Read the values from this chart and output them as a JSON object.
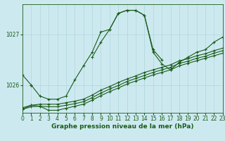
{
  "title": "Graphe pression niveau de la mer (hPa)",
  "bg_color": "#cde9f0",
  "grid_color": "#b0d4dc",
  "line_color": "#1a5c1a",
  "xlim": [
    0,
    23
  ],
  "ylim": [
    1025.45,
    1027.6
  ],
  "yticks": [
    1026,
    1027
  ],
  "xticks": [
    0,
    1,
    2,
    3,
    4,
    5,
    6,
    7,
    8,
    9,
    10,
    11,
    12,
    13,
    14,
    15,
    16,
    17,
    18,
    19,
    20,
    21,
    22,
    23
  ],
  "series": [
    {
      "x": [
        0,
        1,
        2,
        3,
        4,
        5,
        6,
        7,
        8,
        9,
        10,
        11,
        12,
        13,
        14,
        15,
        16,
        17,
        18,
        19,
        20,
        21,
        22,
        23
      ],
      "y": [
        1026.2,
        1026.0,
        null,
        null,
        null,
        null,
        null,
        null,
        1026.55,
        1026.85,
        1027.1,
        1027.42,
        1027.48,
        1027.48,
        1027.38,
        1026.7,
        1026.5,
        null,
        null,
        null,
        null,
        null,
        null,
        null
      ]
    },
    {
      "x": [
        1,
        2,
        3,
        4,
        5,
        6,
        7,
        8,
        9,
        10,
        11,
        12,
        13,
        14,
        15,
        16,
        17,
        18,
        19,
        20,
        21,
        22,
        23
      ],
      "y": [
        1026.0,
        1025.78,
        1025.72,
        1025.72,
        1025.78,
        1026.1,
        1026.38,
        1026.65,
        1027.05,
        1027.1,
        1027.42,
        1027.48,
        1027.48,
        1027.38,
        1026.65,
        1026.42,
        1026.3,
        1026.45,
        1026.55,
        1026.65,
        1026.7,
        1026.85,
        1026.95
      ]
    },
    {
      "x": [
        0,
        1,
        2,
        3,
        4,
        5,
        6,
        7,
        8,
        9,
        10,
        11,
        12,
        13,
        14,
        15,
        16,
        17,
        18,
        19,
        20,
        21,
        22,
        23
      ],
      "y": [
        1025.55,
        1025.6,
        1025.62,
        1025.62,
        1025.62,
        1025.65,
        1025.68,
        1025.72,
        1025.8,
        1025.9,
        1025.97,
        1026.05,
        1026.12,
        1026.18,
        1026.25,
        1026.3,
        1026.35,
        1026.4,
        1026.48,
        1026.52,
        1026.58,
        1026.62,
        1026.68,
        1026.73
      ]
    },
    {
      "x": [
        0,
        1,
        2,
        3,
        4,
        5,
        6,
        7,
        8,
        9,
        10,
        11,
        12,
        13,
        14,
        15,
        16,
        17,
        18,
        19,
        20,
        21,
        22,
        23
      ],
      "y": [
        1025.52,
        1025.57,
        1025.58,
        1025.57,
        1025.57,
        1025.6,
        1025.63,
        1025.67,
        1025.75,
        1025.84,
        1025.92,
        1025.99,
        1026.07,
        1026.13,
        1026.19,
        1026.25,
        1026.3,
        1026.35,
        1026.43,
        1026.47,
        1026.53,
        1026.57,
        1026.63,
        1026.68
      ]
    },
    {
      "x": [
        0,
        1,
        2,
        3,
        4,
        5,
        6,
        7,
        8,
        9,
        10,
        11,
        12,
        13,
        14,
        15,
        16,
        17,
        18,
        19,
        20,
        21,
        22,
        23
      ],
      "y": [
        1025.52,
        1025.6,
        1025.58,
        1025.5,
        1025.5,
        1025.54,
        1025.58,
        1025.62,
        1025.7,
        1025.79,
        1025.87,
        1025.94,
        1026.02,
        1026.08,
        1026.14,
        1026.2,
        1026.25,
        1026.3,
        1026.38,
        1026.43,
        1026.48,
        1026.53,
        1026.58,
        1026.63
      ]
    }
  ],
  "title_fontsize": 6.5,
  "tick_fontsize": 5.5
}
